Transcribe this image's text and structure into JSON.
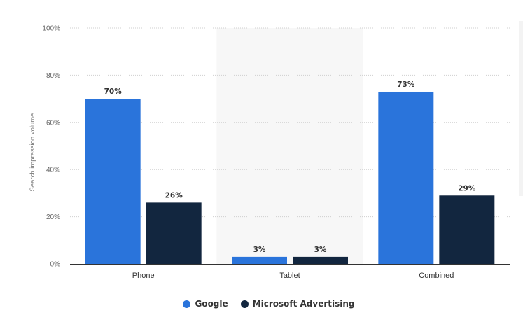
{
  "chart_data": {
    "type": "bar",
    "categories": [
      "Phone",
      "Tablet",
      "Combined"
    ],
    "highlighted_category": "Tablet",
    "series": [
      {
        "name": "Google",
        "color": "#2A74DB",
        "values": [
          70,
          3,
          73
        ]
      },
      {
        "name": "Microsoft Advertising",
        "color": "#12263F",
        "values": [
          26,
          3,
          29
        ]
      }
    ],
    "data_labels": [
      [
        "70%",
        "3%",
        "73%"
      ],
      [
        "26%",
        "3%",
        "29%"
      ]
    ],
    "title": "",
    "xlabel": "",
    "ylabel": "Search impression volume",
    "ylim": [
      0,
      100
    ],
    "yticks": [
      {
        "value": 0,
        "label": "0%"
      },
      {
        "value": 20,
        "label": "20%"
      },
      {
        "value": 40,
        "label": "40%"
      },
      {
        "value": 60,
        "label": "60%"
      },
      {
        "value": 80,
        "label": "80%"
      },
      {
        "value": 100,
        "label": "100%"
      }
    ],
    "grid": true,
    "legend_position": "bottom-center"
  }
}
